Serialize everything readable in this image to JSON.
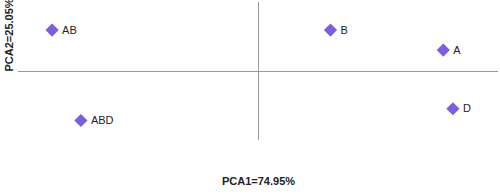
{
  "chart_data": {
    "type": "scatter",
    "x_label": "PCA1=74.95%",
    "y_label": "PCA2=25.05%",
    "labels": [
      "AB",
      "B",
      "A",
      "ABD",
      "D"
    ],
    "x": [
      -0.86,
      0.3,
      0.77,
      -0.74,
      0.81
    ],
    "values": [
      0.6,
      0.6,
      0.31,
      -0.71,
      -0.54
    ],
    "color": "#7b5fdc",
    "marker": "diamond",
    "xlim": [
      -1,
      1
    ],
    "ylim": [
      -1,
      1
    ],
    "xticks": [
      0
    ],
    "yticks": [
      0
    ],
    "tick_labels": false
  }
}
